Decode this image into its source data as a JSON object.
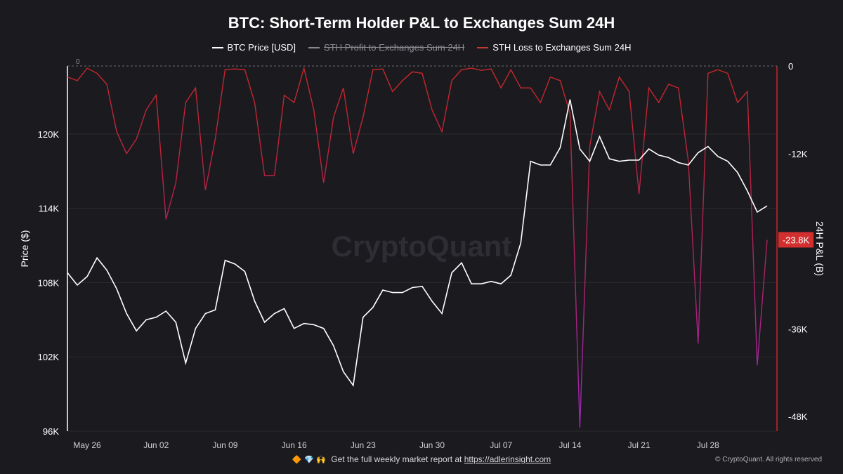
{
  "chart_data": {
    "type": "line",
    "title": "BTC: Short-Term Holder P&L to Exchanges Sum 24H",
    "legend": [
      {
        "name": "BTC Price [USD]",
        "color": "#ffffff",
        "enabled": true
      },
      {
        "name": "STH Profit to Exchanges Sum 24H",
        "color": "#8a8a90",
        "enabled": false
      },
      {
        "name": "STH Loss to Exchanges Sum 24H",
        "color": "#c0392b",
        "enabled": true
      }
    ],
    "ylabel_left": "Price ($)",
    "ylabel_right": "24H P&L (B)",
    "y_left_ticks": [
      "120K",
      "114K",
      "108K",
      "102K",
      "96K"
    ],
    "y_left_range": [
      96000,
      125500
    ],
    "y_right_ticks": [
      "0",
      "-12K",
      "-36K",
      "-48K"
    ],
    "y_right_range": [
      -50000,
      0
    ],
    "x_ticks": [
      "May 26",
      "Jun 02",
      "Jun 09",
      "Jun 16",
      "Jun 23",
      "Jun 30",
      "Jul 07",
      "Jul 14",
      "Jul 21",
      "Jul 28"
    ],
    "x_range": [
      "2025-05-24",
      "2025-08-04"
    ],
    "zero_label": "0",
    "last_value_badge": "-23.8K",
    "watermark": "CryptoQuant",
    "btc_price_series": {
      "name": "BTC Price [USD]",
      "x": [
        "2025-05-24",
        "2025-05-25",
        "2025-05-26",
        "2025-05-27",
        "2025-05-28",
        "2025-05-29",
        "2025-05-30",
        "2025-05-31",
        "2025-06-01",
        "2025-06-02",
        "2025-06-03",
        "2025-06-04",
        "2025-06-05",
        "2025-06-06",
        "2025-06-07",
        "2025-06-08",
        "2025-06-09",
        "2025-06-10",
        "2025-06-11",
        "2025-06-12",
        "2025-06-13",
        "2025-06-14",
        "2025-06-15",
        "2025-06-16",
        "2025-06-17",
        "2025-06-18",
        "2025-06-19",
        "2025-06-20",
        "2025-06-21",
        "2025-06-22",
        "2025-06-23",
        "2025-06-24",
        "2025-06-25",
        "2025-06-26",
        "2025-06-27",
        "2025-06-28",
        "2025-06-29",
        "2025-06-30",
        "2025-07-01",
        "2025-07-02",
        "2025-07-03",
        "2025-07-04",
        "2025-07-05",
        "2025-07-06",
        "2025-07-07",
        "2025-07-08",
        "2025-07-09",
        "2025-07-10",
        "2025-07-11",
        "2025-07-12",
        "2025-07-13",
        "2025-07-14",
        "2025-07-15",
        "2025-07-16",
        "2025-07-17",
        "2025-07-18",
        "2025-07-19",
        "2025-07-20",
        "2025-07-21",
        "2025-07-22",
        "2025-07-23",
        "2025-07-24",
        "2025-07-25",
        "2025-07-26",
        "2025-07-27",
        "2025-07-28",
        "2025-07-29",
        "2025-07-30",
        "2025-07-31",
        "2025-08-01",
        "2025-08-02",
        "2025-08-03"
      ],
      "values": [
        108800,
        107800,
        108500,
        110000,
        109000,
        107500,
        105500,
        104100,
        105000,
        105200,
        105700,
        104800,
        101500,
        104300,
        105500,
        105800,
        109800,
        109500,
        108900,
        106500,
        104800,
        105500,
        105900,
        104300,
        104700,
        104600,
        104300,
        102900,
        100800,
        99700,
        105200,
        106000,
        107400,
        107200,
        107200,
        107600,
        107700,
        106500,
        105500,
        108800,
        109600,
        107900,
        107900,
        108100,
        107900,
        108600,
        111200,
        117800,
        117500,
        117500,
        118900,
        122800,
        118800,
        117800,
        119800,
        118000,
        117800,
        117900,
        117900,
        118800,
        118300,
        118100,
        117700,
        117500,
        118500,
        119000,
        118200,
        117800,
        116900,
        115400,
        113700,
        114200
      ]
    },
    "sth_loss_series": {
      "name": "STH Loss to Exchanges Sum 24H",
      "x": [
        "2025-05-24",
        "2025-05-25",
        "2025-05-26",
        "2025-05-27",
        "2025-05-28",
        "2025-05-29",
        "2025-05-30",
        "2025-05-31",
        "2025-06-01",
        "2025-06-02",
        "2025-06-03",
        "2025-06-04",
        "2025-06-05",
        "2025-06-06",
        "2025-06-07",
        "2025-06-08",
        "2025-06-09",
        "2025-06-10",
        "2025-06-11",
        "2025-06-12",
        "2025-06-13",
        "2025-06-14",
        "2025-06-15",
        "2025-06-16",
        "2025-06-17",
        "2025-06-18",
        "2025-06-19",
        "2025-06-20",
        "2025-06-21",
        "2025-06-22",
        "2025-06-23",
        "2025-06-24",
        "2025-06-25",
        "2025-06-26",
        "2025-06-27",
        "2025-06-28",
        "2025-06-29",
        "2025-06-30",
        "2025-07-01",
        "2025-07-02",
        "2025-07-03",
        "2025-07-04",
        "2025-07-05",
        "2025-07-06",
        "2025-07-07",
        "2025-07-08",
        "2025-07-09",
        "2025-07-10",
        "2025-07-11",
        "2025-07-12",
        "2025-07-13",
        "2025-07-14",
        "2025-07-15",
        "2025-07-16",
        "2025-07-17",
        "2025-07-18",
        "2025-07-19",
        "2025-07-20",
        "2025-07-21",
        "2025-07-22",
        "2025-07-23",
        "2025-07-24",
        "2025-07-25",
        "2025-07-26",
        "2025-07-27",
        "2025-07-28",
        "2025-07-29",
        "2025-07-30",
        "2025-07-31",
        "2025-08-01",
        "2025-08-02",
        "2025-08-03"
      ],
      "values": [
        -1500,
        -2000,
        -300,
        -1000,
        -2500,
        -9000,
        -12000,
        -10000,
        -6000,
        -4000,
        -21000,
        -16000,
        -5000,
        -3000,
        -17000,
        -10000,
        -500,
        -400,
        -500,
        -5000,
        -15000,
        -15000,
        -4000,
        -5000,
        -300,
        -6000,
        -16000,
        -7000,
        -3000,
        -12000,
        -7000,
        -500,
        -400,
        -3500,
        -2000,
        -800,
        -1000,
        -6000,
        -9000,
        -2000,
        -500,
        -300,
        -600,
        -400,
        -3000,
        -500,
        -3000,
        -3000,
        -5000,
        -1500,
        -2000,
        -6500,
        -49500,
        -11000,
        -3500,
        -6000,
        -1500,
        -3500,
        -17500,
        -3000,
        -5000,
        -2500,
        -3000,
        -13000,
        -38000,
        -1000,
        -500,
        -1000,
        -5000,
        -3500,
        -41000,
        -23800
      ]
    }
  },
  "footer": {
    "icons": "🔶 💎 🙌",
    "text": "Get the full weekly market report at",
    "link": "https://adlerinsight.com",
    "copyright": "© CryptoQuant. All rights reserved"
  }
}
